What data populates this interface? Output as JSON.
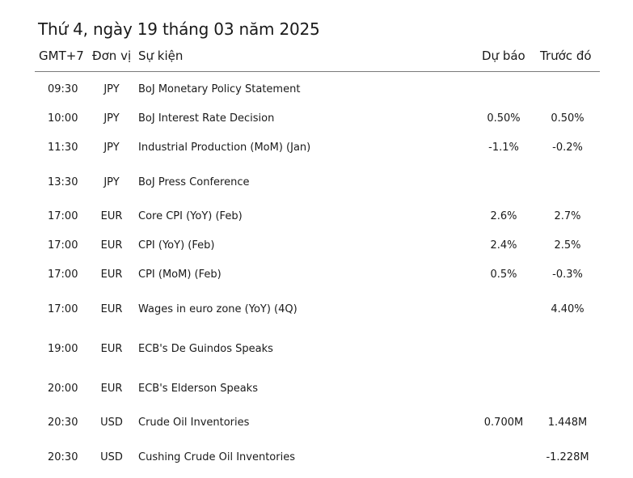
{
  "title": "Thứ 4, ngày 19 tháng 03 năm 2025",
  "columns": {
    "time": "GMT+7",
    "currency": "Đơn vị",
    "event": "Sự kiện",
    "forecast": "Dự báo",
    "previous": "Trước đó"
  },
  "rows": [
    {
      "time": "09:30",
      "currency": "JPY",
      "event": "BoJ Monetary Policy Statement",
      "forecast": "",
      "previous": ""
    },
    {
      "time": "10:00",
      "currency": "JPY",
      "event": "BoJ Interest Rate Decision",
      "forecast": "0.50%",
      "previous": "0.50%"
    },
    {
      "time": "11:30",
      "currency": "JPY",
      "event": "Industrial Production (MoM) (Jan)",
      "forecast": "-1.1%",
      "previous": "-0.2%"
    },
    {
      "time": "13:30",
      "currency": "JPY",
      "event": "BoJ Press Conference",
      "forecast": "",
      "previous": ""
    },
    {
      "time": "17:00",
      "currency": "EUR",
      "event": "Core CPI (YoY) (Feb)",
      "forecast": "2.6%",
      "previous": "2.7%"
    },
    {
      "time": "17:00",
      "currency": "EUR",
      "event": "CPI (YoY) (Feb)",
      "forecast": "2.4%",
      "previous": "2.5%"
    },
    {
      "time": "17:00",
      "currency": "EUR",
      "event": "CPI (MoM) (Feb)",
      "forecast": "0.5%",
      "previous": "-0.3%"
    },
    {
      "time": "17:00",
      "currency": "EUR",
      "event": "Wages in euro zone (YoY) (4Q)",
      "forecast": "",
      "previous": "4.40%"
    },
    {
      "time": "19:00",
      "currency": "EUR",
      "event": "ECB's De Guindos Speaks",
      "forecast": "",
      "previous": ""
    },
    {
      "time": "20:00",
      "currency": "EUR",
      "event": "ECB's Elderson Speaks",
      "forecast": "",
      "previous": ""
    },
    {
      "time": "20:30",
      "currency": "USD",
      "event": "Crude Oil Inventories",
      "forecast": "0.700M",
      "previous": "1.448M"
    },
    {
      "time": "20:30",
      "currency": "USD",
      "event": "Cushing Crude Oil Inventories",
      "forecast": "",
      "previous": "-1.228M"
    }
  ]
}
